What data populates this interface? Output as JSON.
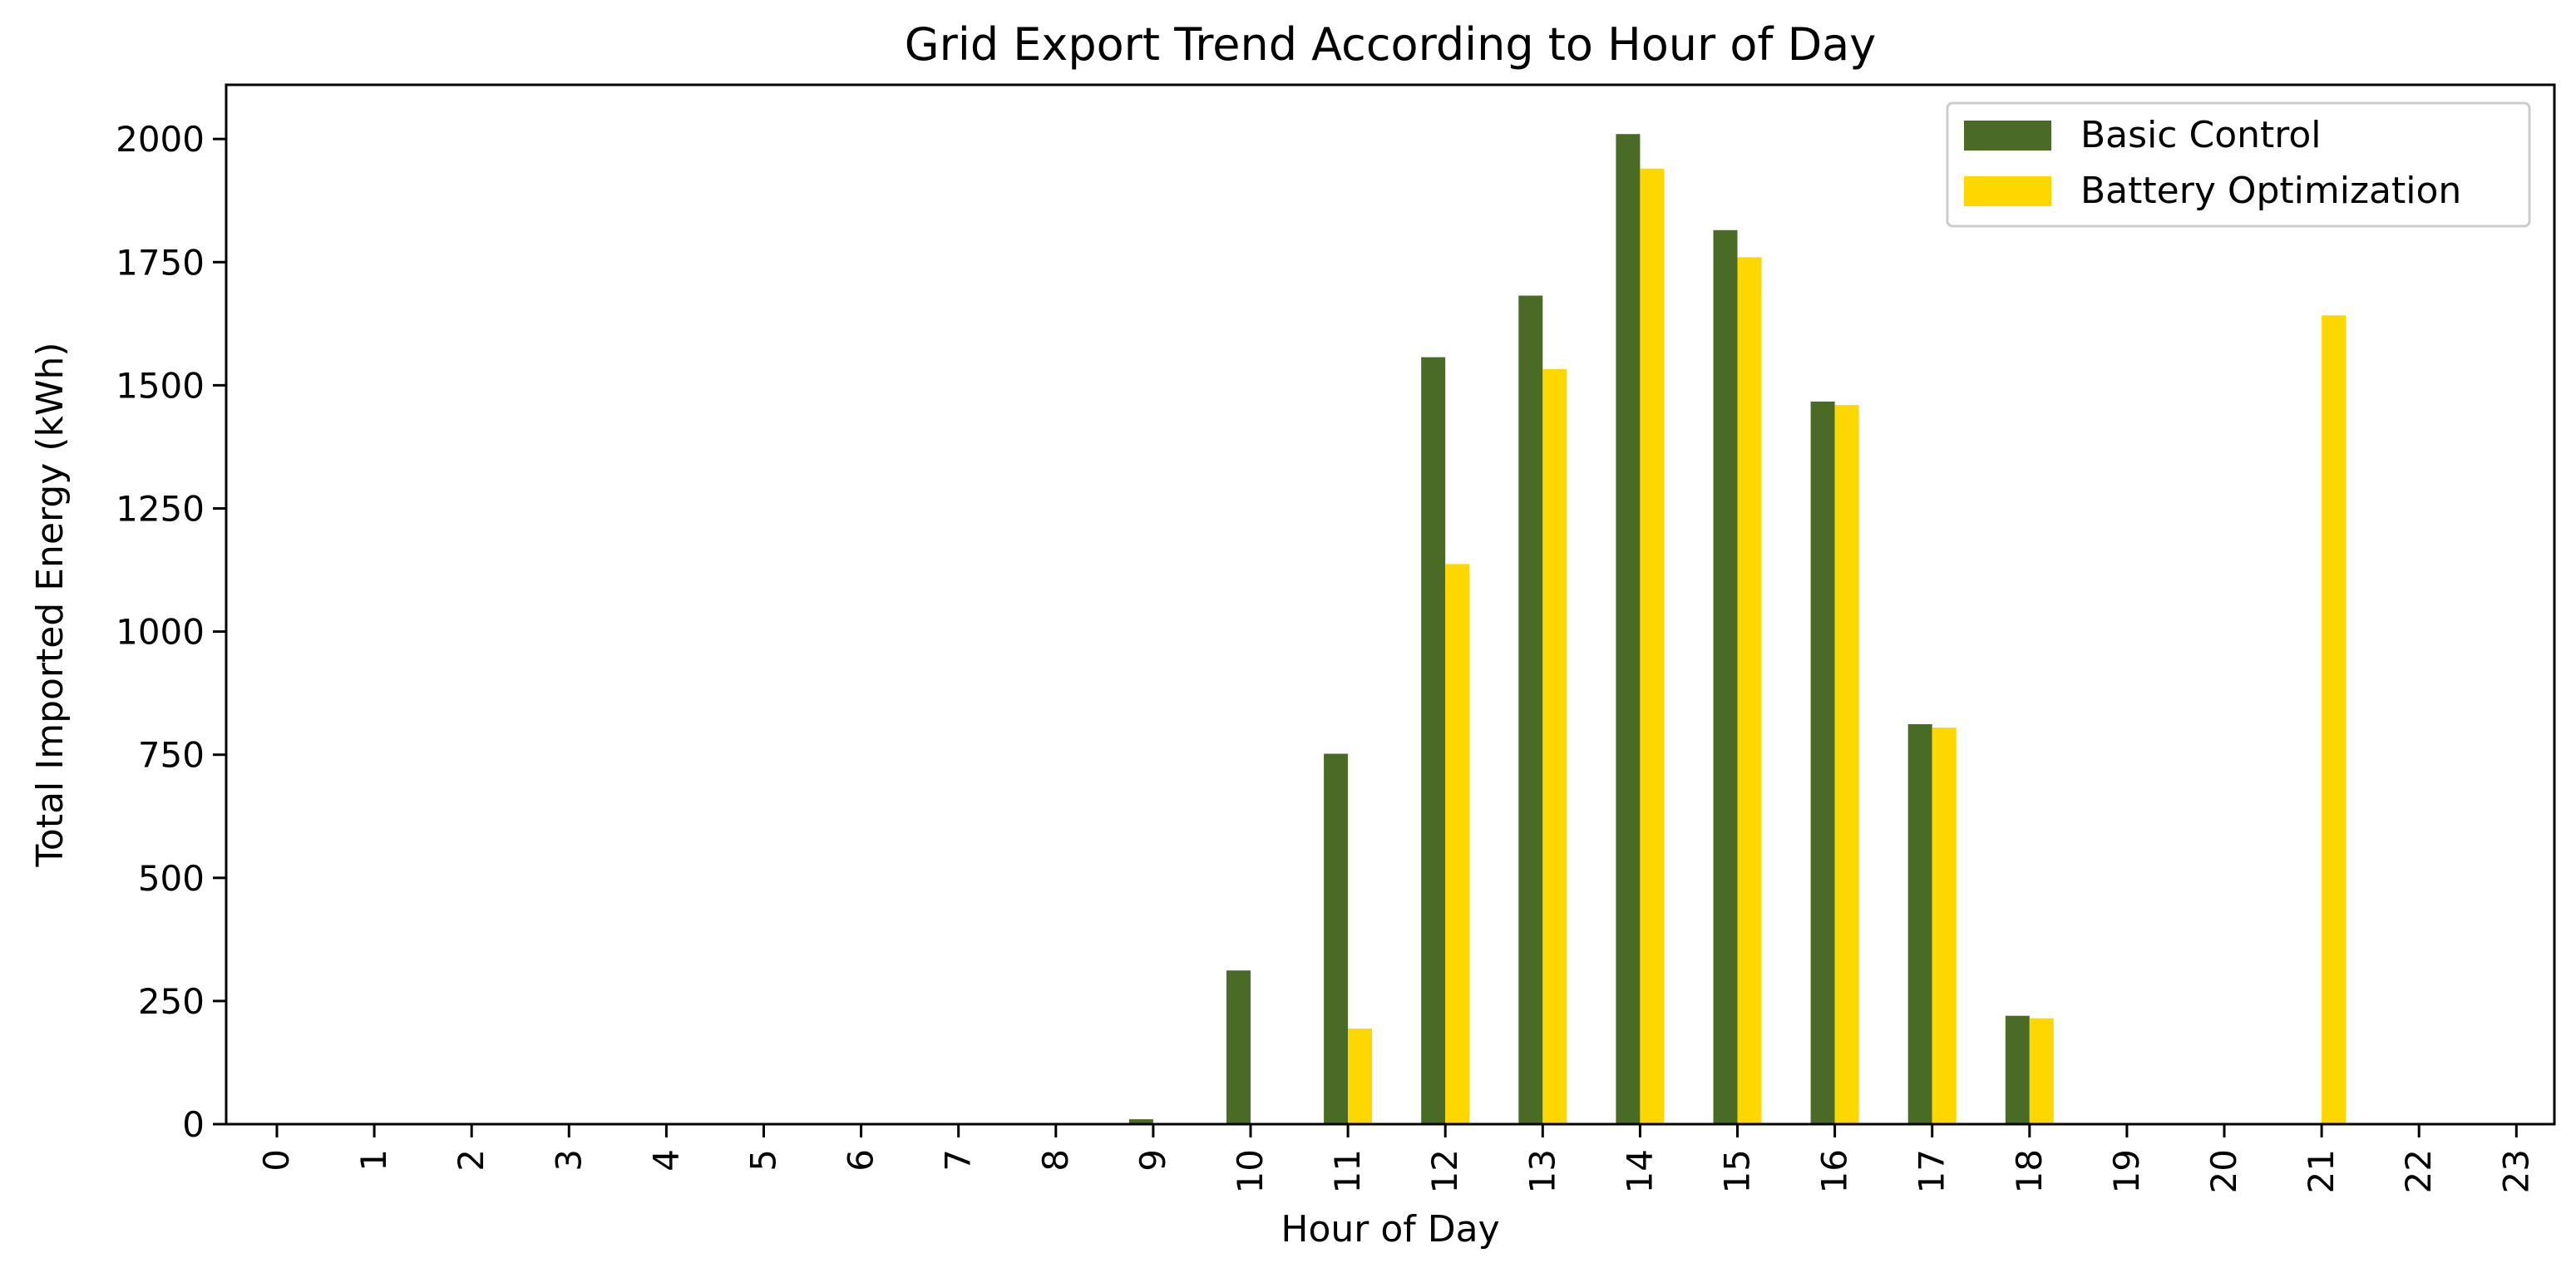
{
  "chart_data": {
    "type": "bar",
    "title": "Grid Export Trend According to Hour of Day",
    "xlabel": "Hour of Day",
    "ylabel": "Total Imported Energy (kWh)",
    "categories": [
      "0",
      "1",
      "2",
      "3",
      "4",
      "5",
      "6",
      "7",
      "8",
      "9",
      "10",
      "11",
      "12",
      "13",
      "14",
      "15",
      "16",
      "17",
      "18",
      "19",
      "20",
      "21",
      "22",
      "23"
    ],
    "series": [
      {
        "name": "Basic Control",
        "color": "#4a6b26",
        "values": [
          0,
          0,
          0,
          0,
          0,
          0,
          0,
          0,
          0,
          10,
          312,
          752,
          1557,
          1682,
          2010,
          1815,
          1467,
          812,
          220,
          0,
          0,
          0,
          0,
          0
        ]
      },
      {
        "name": "Battery Optimization",
        "color": "#ffd700",
        "values": [
          0,
          0,
          0,
          0,
          0,
          0,
          0,
          0,
          0,
          0,
          0,
          194,
          1137,
          1533,
          1940,
          1760,
          1460,
          805,
          215,
          0,
          0,
          1642,
          0,
          0
        ]
      }
    ],
    "ylim": [
      0,
      2110
    ],
    "yticks": [
      0,
      250,
      500,
      750,
      1000,
      1250,
      1500,
      1750,
      2000
    ],
    "grid": false,
    "legend_position": "top-right"
  }
}
